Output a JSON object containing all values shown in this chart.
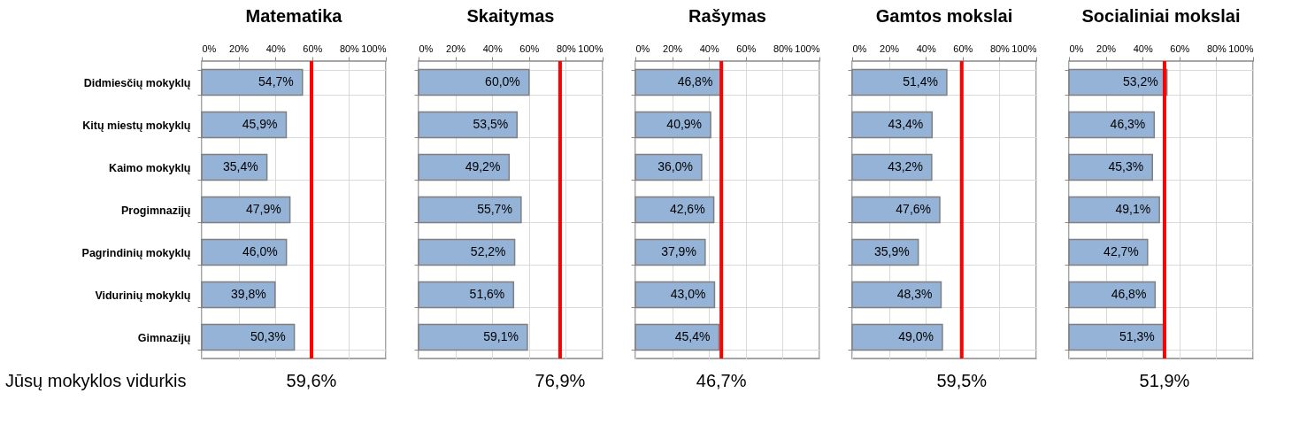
{
  "chart_data": [
    {
      "type": "bar",
      "orientation": "horizontal",
      "title": "Matematika",
      "categories": [
        "Didmiesčių mokyklų",
        "Kitų miestų mokyklų",
        "Kaimo mokyklų",
        "Progimnazijų",
        "Pagrindinių mokyklų",
        "Vidurinių mokyklų",
        "Gimnazijų"
      ],
      "values": [
        54.7,
        45.9,
        35.4,
        47.9,
        46.0,
        39.8,
        50.3
      ],
      "value_labels": [
        "54,7%",
        "45,9%",
        "35,4%",
        "47,9%",
        "46,0%",
        "39,8%",
        "50,3%"
      ],
      "color": "#95b3d7",
      "xlim": [
        0,
        100
      ],
      "xticks": [
        {
          "value": 0,
          "label": "0%"
        },
        {
          "value": 20,
          "label": "20%"
        },
        {
          "value": 40,
          "label": "40%"
        },
        {
          "value": 60,
          "label": "60%"
        },
        {
          "value": 80,
          "label": "80%"
        },
        {
          "value": 100,
          "label": "100%"
        }
      ],
      "grid": true,
      "ref_lines": [
        {
          "axis": "x",
          "value": 59.6,
          "label": "59,6%",
          "color": "#ff0000"
        }
      ],
      "annotations": [
        "Jūsų mokyklos vidurkis"
      ]
    },
    {
      "type": "bar",
      "orientation": "horizontal",
      "title": "Skaitymas",
      "categories": [
        null,
        null,
        null,
        null,
        null,
        null,
        null
      ],
      "values": [
        60.0,
        53.5,
        49.2,
        55.7,
        52.2,
        51.6,
        59.1
      ],
      "value_labels": [
        "60,0%",
        "53,5%",
        "49,2%",
        "55,7%",
        "52,2%",
        "51,6%",
        "59,1%"
      ],
      "color": "#95b3d7",
      "xlim": [
        0,
        100
      ],
      "xticks": [
        {
          "value": 0,
          "label": "0%"
        },
        {
          "value": 20,
          "label": "20%"
        },
        {
          "value": 40,
          "label": "40%"
        },
        {
          "value": 60,
          "label": "60%"
        },
        {
          "value": 80,
          "label": "80%"
        },
        {
          "value": 100,
          "label": "100%"
        }
      ],
      "grid": true,
      "tick_labels": "x",
      "ref_lines": [
        {
          "axis": "x",
          "value": 76.9,
          "label": "76,9%",
          "color": "#ff0000"
        }
      ]
    },
    {
      "type": "bar",
      "orientation": "horizontal",
      "title": "Rašymas",
      "categories": [
        null,
        null,
        null,
        null,
        null,
        null,
        null
      ],
      "values": [
        46.8,
        40.9,
        36.0,
        42.6,
        37.9,
        43.0,
        45.4
      ],
      "value_labels": [
        "46,8%",
        "40,9%",
        "36,0%",
        "42,6%",
        "37,9%",
        "43,0%",
        "45,4%"
      ],
      "color": "#95b3d7",
      "xlim": [
        0,
        100
      ],
      "xticks": [
        {
          "value": 0,
          "label": "0%"
        },
        {
          "value": 20,
          "label": "20%"
        },
        {
          "value": 40,
          "label": "40%"
        },
        {
          "value": 60,
          "label": "60%"
        },
        {
          "value": 80,
          "label": "80%"
        },
        {
          "value": 100,
          "label": "100%"
        }
      ],
      "grid": true,
      "tick_labels": "x",
      "ref_lines": [
        {
          "axis": "x",
          "value": 46.7,
          "label": "46,7%",
          "color": "#ff0000"
        }
      ]
    },
    {
      "type": "bar",
      "orientation": "horizontal",
      "title": "Gamtos mokslai",
      "categories": [
        null,
        null,
        null,
        null,
        null,
        null,
        null
      ],
      "values": [
        51.4,
        43.4,
        43.2,
        47.6,
        35.9,
        48.3,
        49.0
      ],
      "value_labels": [
        "51,4%",
        "43,4%",
        "43,2%",
        "47,6%",
        "35,9%",
        "48,3%",
        "49,0%"
      ],
      "color": "#95b3d7",
      "xlim": [
        0,
        100
      ],
      "xticks": [
        {
          "value": 0,
          "label": "0%"
        },
        {
          "value": 20,
          "label": "20%"
        },
        {
          "value": 40,
          "label": "40%"
        },
        {
          "value": 60,
          "label": "60%"
        },
        {
          "value": 80,
          "label": "80%"
        },
        {
          "value": 100,
          "label": "100%"
        }
      ],
      "grid": true,
      "tick_labels": "x",
      "ref_lines": [
        {
          "axis": "x",
          "value": 59.5,
          "label": "59,5%",
          "color": "#ff0000"
        }
      ]
    },
    {
      "type": "bar",
      "orientation": "horizontal",
      "title": "Socialiniai mokslai",
      "categories": [
        null,
        null,
        null,
        null,
        null,
        null,
        null
      ],
      "values": [
        53.2,
        46.3,
        45.3,
        49.1,
        42.7,
        46.8,
        51.3
      ],
      "value_labels": [
        "53,2%",
        "46,3%",
        "45,3%",
        "49,1%",
        "42,7%",
        "46,8%",
        "51,3%"
      ],
      "color": "#95b3d7",
      "xlim": [
        0,
        100
      ],
      "xticks": [
        {
          "value": 0,
          "label": "0%"
        },
        {
          "value": 20,
          "label": "20%"
        },
        {
          "value": 40,
          "label": "40%"
        },
        {
          "value": 60,
          "label": "60%"
        },
        {
          "value": 80,
          "label": "80%"
        },
        {
          "value": 100,
          "label": "100%"
        }
      ],
      "grid": true,
      "tick_labels": "x",
      "ref_lines": [
        {
          "axis": "x",
          "value": 51.9,
          "label": "51,9%",
          "color": "#ff0000"
        }
      ]
    }
  ]
}
